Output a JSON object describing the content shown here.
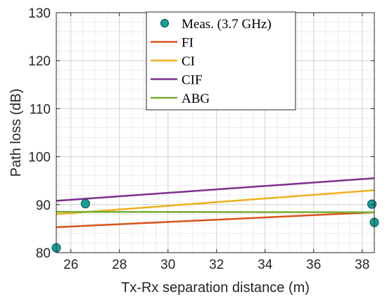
{
  "chart_data": {
    "type": "line",
    "title": "",
    "xlabel": "Tx-Rx separation distance (m)",
    "ylabel": "Path loss (dB)",
    "xlim": [
      25.4,
      38.5
    ],
    "ylim": [
      80,
      130
    ],
    "xticks": [
      26,
      28,
      30,
      32,
      34,
      36,
      38
    ],
    "yticks": [
      80,
      90,
      100,
      110,
      120,
      130
    ],
    "grid": true,
    "minor_grid": true,
    "legend_position": "top-center",
    "legend": [
      {
        "label": "Meas. (3.7 GHz)",
        "kind": "marker",
        "color": "#1a9e9a"
      },
      {
        "label": "FI",
        "kind": "line",
        "color": "#d95319"
      },
      {
        "label": "CI",
        "kind": "line",
        "color": "#edb120"
      },
      {
        "label": "CIF",
        "kind": "line",
        "color": "#7e2f8e"
      },
      {
        "label": "ABG",
        "kind": "line",
        "color": "#77ac30"
      }
    ],
    "scatter": {
      "name": "Meas. (3.7 GHz)",
      "color": "#1a9e9a",
      "points": [
        {
          "x": 25.4,
          "y": 81.0
        },
        {
          "x": 26.6,
          "y": 90.2
        },
        {
          "x": 38.4,
          "y": 90.1
        },
        {
          "x": 38.5,
          "y": 86.3
        }
      ]
    },
    "lines": [
      {
        "name": "FI",
        "color": "#d95319",
        "x": [
          25.4,
          38.5
        ],
        "y": [
          85.3,
          88.4
        ]
      },
      {
        "name": "CI",
        "color": "#edb120",
        "x": [
          25.4,
          38.5
        ],
        "y": [
          88.0,
          93.0
        ]
      },
      {
        "name": "CIF",
        "color": "#7e2f8e",
        "x": [
          25.4,
          38.5
        ],
        "y": [
          90.8,
          95.5
        ]
      },
      {
        "name": "ABG",
        "color": "#77ac30",
        "x": [
          25.4,
          38.5
        ],
        "y": [
          88.5,
          88.4
        ]
      }
    ]
  }
}
